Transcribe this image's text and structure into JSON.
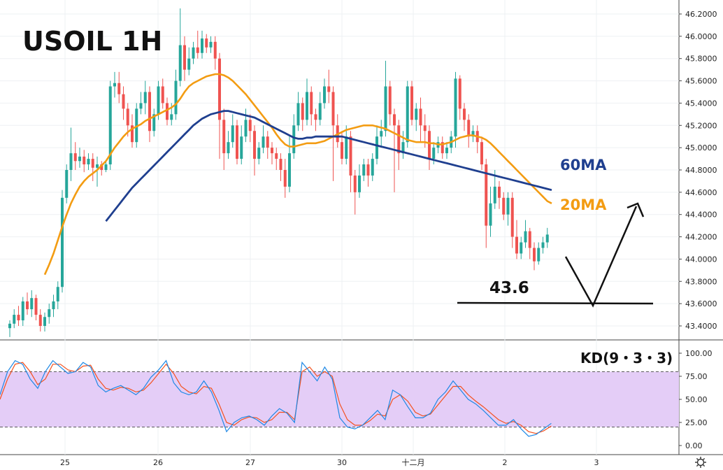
{
  "chart_data": [
    {
      "type": "candlestick",
      "title": "USOIL 1H",
      "ylim": [
        43.3,
        46.3
      ],
      "y_ticks": [
        "46.2000",
        "46.0000",
        "45.8000",
        "45.6000",
        "45.4000",
        "45.2000",
        "45.0000",
        "44.8000",
        "44.6000",
        "44.4000",
        "44.2000",
        "44.0000",
        "43.8000",
        "43.6000",
        "43.4000"
      ],
      "x_ticks": [
        "25",
        "26",
        "27",
        "30",
        "十二月",
        "2",
        "3"
      ],
      "colors": {
        "up": "#26a69a",
        "down": "#ef5350",
        "ma20": "#f39c12",
        "ma60": "#1f3f8f",
        "kd_band": "#e4cdf7"
      },
      "candles": [
        [
          43.38,
          43.42,
          43.3,
          43.45
        ],
        [
          43.42,
          43.5,
          43.38,
          43.55
        ],
        [
          43.5,
          43.45,
          43.4,
          43.58
        ],
        [
          43.45,
          43.62,
          43.4,
          43.66
        ],
        [
          43.62,
          43.55,
          43.5,
          43.7
        ],
        [
          43.55,
          43.65,
          43.48,
          43.72
        ],
        [
          43.65,
          43.5,
          43.45,
          43.68
        ],
        [
          43.5,
          43.4,
          43.35,
          43.55
        ],
        [
          43.4,
          43.48,
          43.35,
          43.52
        ],
        [
          43.48,
          43.55,
          43.42,
          43.6
        ],
        [
          43.55,
          43.62,
          43.48,
          43.68
        ],
        [
          43.62,
          43.75,
          43.55,
          43.8
        ],
        [
          43.75,
          44.55,
          43.7,
          44.62
        ],
        [
          44.55,
          44.8,
          44.5,
          44.85
        ],
        [
          44.8,
          44.95,
          44.7,
          45.18
        ],
        [
          44.95,
          44.88,
          44.8,
          45.05
        ],
        [
          44.88,
          44.92,
          44.82,
          45.0
        ],
        [
          44.92,
          44.85,
          44.78,
          44.98
        ],
        [
          44.85,
          44.9,
          44.8,
          44.95
        ],
        [
          44.9,
          44.82,
          44.7,
          44.95
        ],
        [
          44.82,
          44.85,
          44.65,
          44.92
        ],
        [
          44.85,
          44.8,
          44.75,
          44.88
        ],
        [
          44.8,
          44.85,
          44.78,
          44.88
        ],
        [
          44.85,
          45.55,
          44.8,
          45.6
        ],
        [
          45.55,
          45.58,
          45.45,
          45.68
        ],
        [
          45.58,
          45.48,
          45.4,
          45.68
        ],
        [
          45.48,
          45.35,
          45.25,
          45.55
        ],
        [
          45.35,
          45.2,
          45.1,
          45.4
        ],
        [
          45.2,
          45.05,
          45.0,
          45.3
        ],
        [
          45.05,
          45.35,
          45.0,
          45.4
        ],
        [
          45.35,
          45.4,
          45.3,
          45.5
        ],
        [
          45.4,
          45.5,
          45.3,
          45.6
        ],
        [
          45.5,
          45.15,
          45.05,
          45.55
        ],
        [
          45.15,
          45.3,
          45.1,
          45.35
        ],
        [
          45.3,
          45.55,
          45.25,
          45.6
        ],
        [
          45.55,
          45.4,
          45.35,
          45.62
        ],
        [
          45.4,
          45.25,
          45.2,
          45.45
        ],
        [
          45.25,
          45.3,
          45.2,
          45.4
        ],
        [
          45.3,
          45.6,
          45.25,
          45.7
        ],
        [
          45.6,
          45.92,
          45.55,
          46.25
        ],
        [
          45.92,
          45.7,
          45.6,
          46.0
        ],
        [
          45.7,
          45.8,
          45.65,
          45.9
        ],
        [
          45.8,
          45.9,
          45.75,
          45.95
        ],
        [
          45.9,
          45.85,
          45.8,
          46.05
        ],
        [
          45.85,
          45.98,
          45.8,
          46.05
        ],
        [
          45.98,
          45.9,
          45.85,
          46.02
        ],
        [
          45.9,
          45.95,
          45.85,
          46.0
        ],
        [
          45.95,
          45.8,
          45.7,
          46.0
        ],
        [
          45.8,
          45.25,
          44.9,
          45.85
        ],
        [
          45.25,
          44.95,
          44.8,
          45.35
        ],
        [
          44.95,
          45.05,
          44.9,
          45.15
        ],
        [
          45.05,
          45.2,
          45.0,
          45.3
        ],
        [
          45.2,
          44.9,
          44.85,
          45.25
        ],
        [
          44.9,
          45.1,
          44.85,
          45.2
        ],
        [
          45.1,
          45.25,
          45.05,
          45.35
        ],
        [
          45.25,
          45.15,
          45.05,
          45.3
        ],
        [
          45.15,
          44.9,
          44.75,
          45.2
        ],
        [
          44.9,
          45.0,
          44.85,
          45.05
        ],
        [
          45.0,
          45.1,
          44.95,
          45.2
        ],
        [
          45.1,
          45.0,
          44.9,
          45.15
        ],
        [
          45.0,
          44.95,
          44.85,
          45.05
        ],
        [
          44.95,
          44.9,
          44.8,
          45.0
        ],
        [
          44.9,
          44.8,
          44.7,
          44.95
        ],
        [
          44.8,
          44.65,
          44.55,
          44.9
        ],
        [
          44.65,
          44.95,
          44.6,
          45.1
        ],
        [
          44.95,
          45.2,
          44.9,
          45.3
        ],
        [
          45.2,
          45.4,
          45.15,
          45.5
        ],
        [
          45.4,
          45.25,
          45.15,
          45.45
        ],
        [
          45.25,
          45.5,
          45.2,
          45.62
        ],
        [
          45.5,
          45.3,
          45.2,
          45.55
        ],
        [
          45.3,
          45.25,
          45.15,
          45.35
        ],
        [
          45.25,
          45.4,
          45.2,
          45.5
        ],
        [
          45.4,
          45.55,
          45.35,
          45.62
        ],
        [
          45.55,
          45.5,
          45.4,
          45.7
        ],
        [
          45.5,
          45.2,
          44.7,
          45.55
        ],
        [
          45.2,
          45.05,
          45.0,
          45.3
        ],
        [
          45.05,
          44.9,
          44.85,
          45.15
        ],
        [
          44.9,
          45.1,
          44.85,
          45.2
        ],
        [
          45.1,
          44.75,
          44.6,
          45.15
        ],
        [
          44.75,
          44.6,
          44.4,
          44.8
        ],
        [
          44.6,
          44.75,
          44.55,
          44.85
        ],
        [
          44.75,
          44.85,
          44.7,
          44.9
        ],
        [
          44.85,
          44.75,
          44.65,
          44.9
        ],
        [
          44.75,
          44.9,
          44.7,
          44.95
        ],
        [
          44.9,
          45.1,
          44.85,
          45.2
        ],
        [
          45.1,
          45.15,
          45.0,
          45.25
        ],
        [
          45.15,
          45.55,
          45.1,
          45.78
        ],
        [
          45.55,
          45.3,
          45.2,
          45.6
        ],
        [
          45.3,
          45.2,
          44.6,
          45.35
        ],
        [
          45.2,
          44.95,
          44.8,
          45.25
        ],
        [
          44.95,
          45.05,
          44.9,
          45.15
        ],
        [
          45.05,
          45.55,
          45.0,
          45.6
        ],
        [
          45.55,
          45.25,
          45.2,
          45.6
        ],
        [
          45.25,
          45.35,
          45.15,
          45.4
        ],
        [
          45.35,
          45.2,
          45.05,
          45.45
        ],
        [
          45.2,
          45.15,
          45.0,
          45.3
        ],
        [
          45.15,
          44.9,
          44.8,
          45.2
        ],
        [
          44.9,
          45.0,
          44.85,
          45.05
        ],
        [
          45.0,
          45.05,
          44.95,
          45.1
        ],
        [
          45.05,
          44.95,
          44.9,
          45.1
        ],
        [
          44.95,
          45.0,
          44.9,
          45.05
        ],
        [
          45.0,
          45.1,
          44.95,
          45.15
        ],
        [
          45.1,
          45.62,
          45.0,
          45.68
        ],
        [
          45.62,
          45.35,
          45.25,
          45.65
        ],
        [
          45.35,
          45.25,
          45.15,
          45.4
        ],
        [
          45.25,
          45.1,
          45.0,
          45.3
        ],
        [
          45.1,
          45.15,
          45.05,
          45.2
        ],
        [
          45.15,
          45.05,
          44.95,
          45.2
        ],
        [
          45.05,
          44.85,
          44.8,
          45.1
        ],
        [
          44.85,
          44.3,
          44.1,
          44.9
        ],
        [
          44.3,
          44.5,
          44.2,
          44.65
        ],
        [
          44.5,
          44.65,
          44.45,
          44.8
        ],
        [
          44.65,
          44.55,
          44.45,
          44.7
        ],
        [
          44.55,
          44.4,
          44.35,
          44.6
        ],
        [
          44.4,
          44.55,
          44.3,
          44.6
        ],
        [
          44.55,
          44.2,
          44.1,
          44.6
        ],
        [
          44.2,
          44.05,
          44.0,
          44.35
        ],
        [
          44.05,
          44.15,
          44.0,
          44.2
        ],
        [
          44.15,
          44.25,
          44.1,
          44.35
        ],
        [
          44.25,
          44.1,
          44.0,
          44.28
        ],
        [
          44.1,
          43.98,
          43.9,
          44.15
        ],
        [
          43.98,
          44.1,
          43.95,
          44.15
        ],
        [
          44.1,
          44.15,
          44.05,
          44.2
        ],
        [
          44.15,
          44.22,
          44.1,
          44.28
        ]
      ],
      "ma20": [
        43.38,
        43.42,
        43.46,
        43.52,
        43.58,
        43.64,
        43.7,
        43.78,
        43.86,
        43.95,
        44.05,
        44.17,
        44.29,
        44.4,
        44.5,
        44.58,
        44.65,
        44.7,
        44.74,
        44.77,
        44.8,
        44.84,
        44.88,
        44.94,
        45.0,
        45.05,
        45.1,
        45.14,
        45.17,
        45.19,
        45.21,
        45.24,
        45.26,
        45.28,
        45.3,
        45.32,
        45.34,
        45.36,
        45.39,
        45.44,
        45.5,
        45.55,
        45.58,
        45.6,
        45.62,
        45.64,
        45.65,
        45.66,
        45.66,
        45.65,
        45.63,
        45.6,
        45.56,
        45.52,
        45.48,
        45.43,
        45.38,
        45.33,
        45.28,
        45.23,
        45.18,
        45.12,
        45.07,
        45.03,
        45.01,
        45.01,
        45.02,
        45.03,
        45.04,
        45.04,
        45.04,
        45.05,
        45.06,
        45.08,
        45.1,
        45.12,
        45.14,
        45.16,
        45.17,
        45.18,
        45.19,
        45.2,
        45.2,
        45.2,
        45.19,
        45.18,
        45.17,
        45.15,
        45.13,
        45.11,
        45.09,
        45.07,
        45.06,
        45.05,
        45.05,
        45.05,
        45.04,
        45.04,
        45.03,
        45.03,
        45.04,
        45.05,
        45.07,
        45.09,
        45.1,
        45.11,
        45.11,
        45.1,
        45.09,
        45.07,
        45.04,
        45.0,
        44.96,
        44.92,
        44.88,
        44.84,
        44.8,
        44.76,
        44.72,
        44.68,
        44.64,
        44.6,
        44.56,
        44.52,
        44.5
      ],
      "ma60": [
        43.3,
        43.33,
        43.36,
        43.4,
        43.44,
        43.49,
        43.54,
        43.59,
        43.64,
        43.69,
        43.74,
        43.79,
        43.84,
        43.89,
        43.94,
        43.99,
        44.04,
        44.09,
        44.14,
        44.19,
        44.24,
        44.29,
        44.34,
        44.39,
        44.44,
        44.49,
        44.54,
        44.59,
        44.64,
        44.68,
        44.72,
        44.76,
        44.8,
        44.84,
        44.88,
        44.92,
        44.96,
        45.0,
        45.04,
        45.08,
        45.12,
        45.16,
        45.2,
        45.23,
        45.26,
        45.28,
        45.3,
        45.31,
        45.32,
        45.33,
        45.33,
        45.32,
        45.31,
        45.3,
        45.29,
        45.28,
        45.27,
        45.25,
        45.23,
        45.21,
        45.19,
        45.17,
        45.15,
        45.13,
        45.11,
        45.09,
        45.08,
        45.08,
        45.09,
        45.09,
        45.1,
        45.1,
        45.1,
        45.1,
        45.1,
        45.1,
        45.1,
        45.09,
        45.08,
        45.07,
        45.06,
        45.05,
        45.04,
        45.03,
        45.02,
        45.01,
        45.0,
        44.99,
        44.98,
        44.97,
        44.96,
        44.95,
        44.94,
        44.93,
        44.92,
        44.91,
        44.9,
        44.89,
        44.88,
        44.87,
        44.86,
        44.85,
        44.84,
        44.83,
        44.82,
        44.81,
        44.8,
        44.79,
        44.78,
        44.77,
        44.76,
        44.75,
        44.74,
        44.73,
        44.72,
        44.71,
        44.7,
        44.69,
        44.68,
        44.67,
        44.66,
        44.65,
        44.64,
        44.63,
        44.62
      ],
      "annotations": {
        "ma20_label": "20MA",
        "ma60_label": "60MA",
        "level_label": "43.6",
        "level": 43.6
      }
    },
    {
      "type": "line",
      "title": "KD(9・3・3)",
      "ylim": [
        0,
        100
      ],
      "y_ticks": [
        "100.00",
        "75.00",
        "50.00",
        "25.00",
        "0.00"
      ],
      "bands": [
        20,
        80
      ],
      "k": [
        55,
        80,
        92,
        88,
        72,
        62,
        80,
        92,
        85,
        78,
        80,
        90,
        85,
        65,
        58,
        62,
        65,
        60,
        55,
        62,
        74,
        82,
        92,
        68,
        58,
        55,
        58,
        70,
        58,
        38,
        15,
        25,
        30,
        32,
        28,
        22,
        32,
        40,
        35,
        25,
        90,
        80,
        70,
        85,
        72,
        30,
        20,
        18,
        22,
        30,
        38,
        28,
        60,
        55,
        42,
        30,
        30,
        35,
        50,
        58,
        70,
        60,
        50,
        45,
        38,
        30,
        22,
        22,
        28,
        18,
        10,
        12,
        18,
        24
      ],
      "d": [
        50,
        72,
        88,
        90,
        80,
        66,
        72,
        88,
        88,
        82,
        80,
        86,
        87,
        72,
        62,
        60,
        63,
        62,
        58,
        60,
        68,
        78,
        88,
        78,
        64,
        58,
        56,
        64,
        62,
        45,
        25,
        22,
        28,
        31,
        30,
        25,
        28,
        36,
        36,
        28,
        80,
        85,
        75,
        80,
        75,
        45,
        28,
        22,
        22,
        27,
        34,
        32,
        50,
        55,
        48,
        36,
        32,
        34,
        44,
        54,
        64,
        64,
        55,
        48,
        42,
        35,
        28,
        24,
        26,
        22,
        15,
        13,
        16,
        21
      ]
    }
  ]
}
